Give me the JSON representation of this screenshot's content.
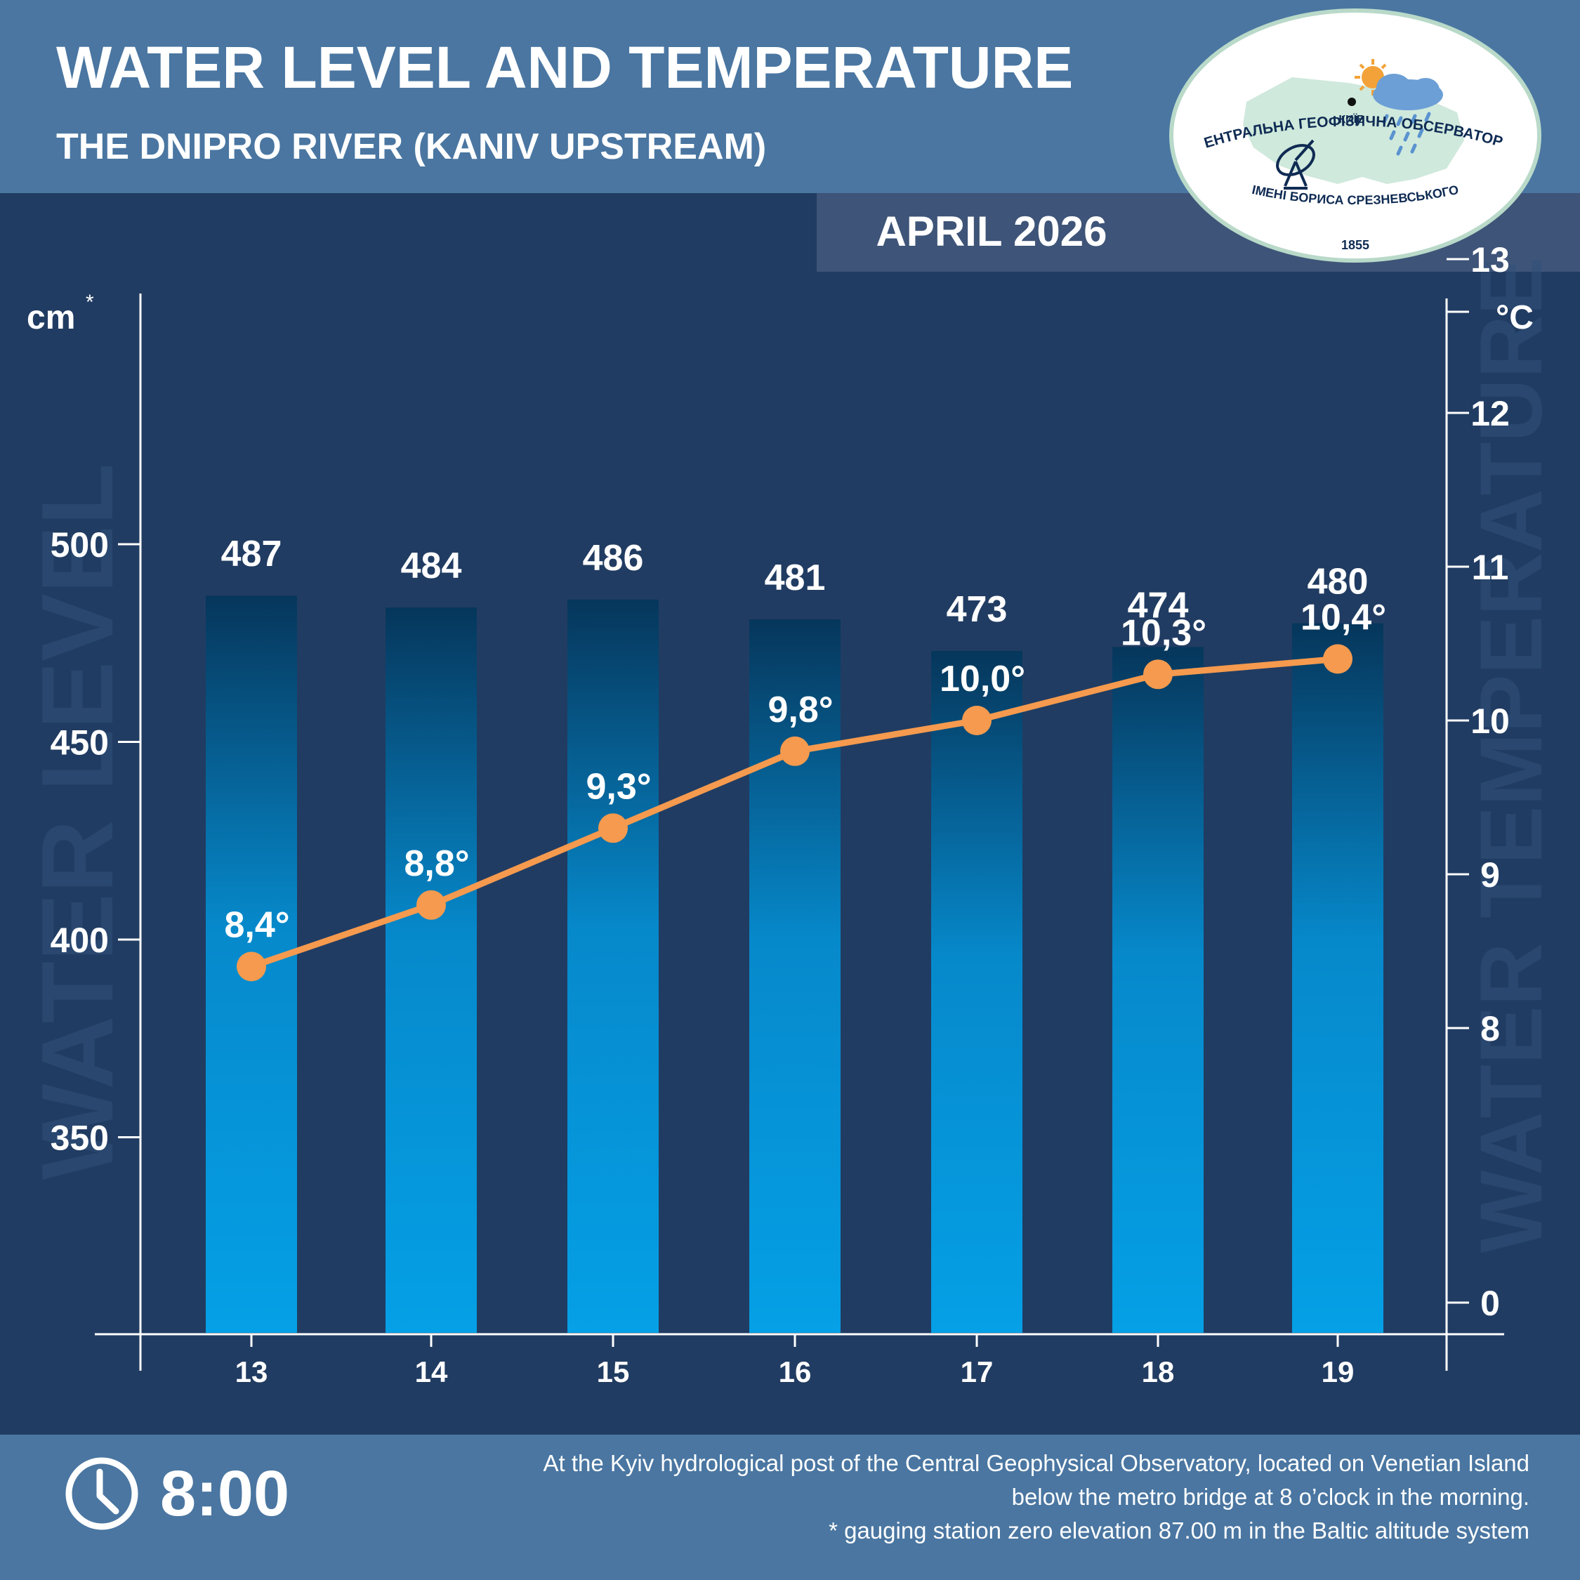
{
  "header": {
    "title": "WATER LEVEL AND TEMPERATURE",
    "subtitle": "THE DNIPRO RIVER (KANIV UPSTREAM)",
    "period": "APRIL 2026"
  },
  "logo": {
    "top_arc": "ЦЕНТРАЛЬНА ГЕОФІЗИЧНА ОБСЕРВАТОРІЯ",
    "bottom_arc": "ІМЕНІ БОРИСА СРЕЗНЕВСЬКОГО",
    "year": "1855",
    "city": "КИЇВ"
  },
  "chart_data": {
    "type": "bar",
    "categories": [
      "13",
      "14",
      "15",
      "16",
      "17",
      "18",
      "19"
    ],
    "series": [
      {
        "name": "Water level",
        "unit": "cm",
        "axis": "left",
        "kind": "bar",
        "values": [
          487,
          484,
          486,
          481,
          473,
          474,
          480
        ]
      },
      {
        "name": "Water temperature",
        "unit": "°C",
        "axis": "right",
        "kind": "line",
        "color": "#f59a4e",
        "values": [
          8.4,
          8.8,
          9.3,
          9.8,
          10.0,
          10.3,
          10.4
        ],
        "labels": [
          "8,4°",
          "8,8°",
          "9,3°",
          "9,8°",
          "10,0°",
          "10,3°",
          "10,4°"
        ]
      }
    ],
    "left_axis": {
      "label": "cm",
      "label_mark": "*",
      "ticks": [
        350,
        400,
        450,
        500
      ],
      "watermark": "WATER LEVEL"
    },
    "right_axis": {
      "label": "°C",
      "ticks": [
        0,
        8,
        9,
        10,
        11,
        12,
        13
      ],
      "watermark": "WATER TEMPERATURE"
    }
  },
  "footer": {
    "time": "8:00",
    "note_line1": "At the Kyiv hydrological post of the Central Geophysical Observatory, located on Venetian Island",
    "note_line2": "below the metro bridge  at 8 o’clock in the morning.",
    "note_line3": "* gauging station zero elevation 87.00 m in the Baltic altitude system"
  },
  "colors": {
    "background": "#213c62",
    "header_band": "#4a76a1",
    "period_band": "#3e5478",
    "bar_top": "#06365b",
    "bar_bottom": "#059ee3",
    "line": "#f59a4e",
    "text": "#ffffff"
  }
}
